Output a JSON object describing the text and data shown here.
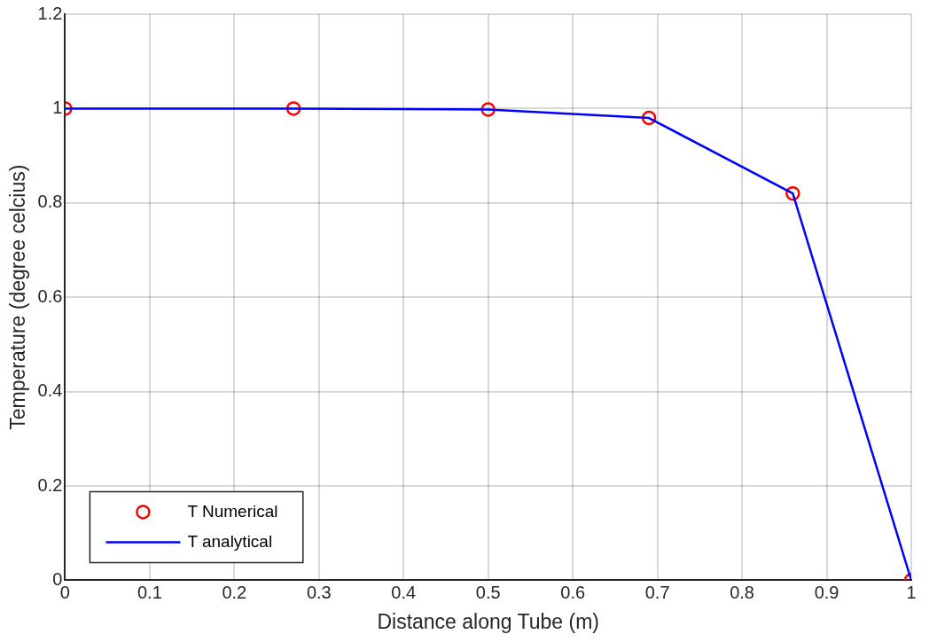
{
  "chart_data": {
    "type": "line",
    "xlabel": "Distance along Tube (m)",
    "ylabel": "Temperature (degree celcius)",
    "xlim": [
      0,
      1
    ],
    "xticks": [
      0,
      0.1,
      0.2,
      0.3,
      0.4,
      0.5,
      0.6,
      0.7,
      0.8,
      0.9,
      1
    ],
    "ylim": [
      0,
      1.2
    ],
    "yticks": [
      0,
      0.2,
      0.4,
      0.6,
      0.8,
      1,
      1.2
    ],
    "grid": true,
    "legend": "bottom left",
    "series": [
      {
        "name": "T Numerical",
        "type": "scatter",
        "marker": "circle",
        "color": "#ff0000",
        "x": [
          0,
          0.27,
          0.5,
          0.69,
          0.86,
          1
        ],
        "values": [
          1,
          1,
          0.998,
          0.98,
          0.82,
          0
        ]
      },
      {
        "name": "T analytical",
        "type": "line",
        "marker": "none",
        "color": "#0000ff",
        "x": [
          0,
          0.27,
          0.5,
          0.69,
          0.86,
          1
        ],
        "values": [
          1,
          1,
          0.998,
          0.98,
          0.82,
          0
        ]
      }
    ]
  }
}
